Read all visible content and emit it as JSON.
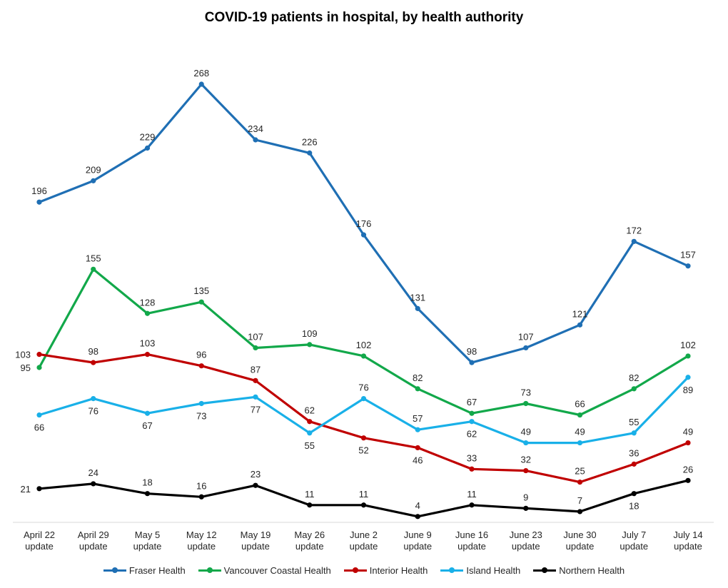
{
  "chart_data": {
    "type": "line",
    "title": "COVID-19 patients in hospital, by health authority",
    "xlabel": "",
    "ylabel": "",
    "categories": [
      [
        "April 22",
        "update"
      ],
      [
        "April 29",
        "update"
      ],
      [
        "May 5",
        "update"
      ],
      [
        "May 12",
        "update"
      ],
      [
        "May 19",
        "update"
      ],
      [
        "May 26",
        "update"
      ],
      [
        "June 2",
        "update"
      ],
      [
        "June 9",
        "update"
      ],
      [
        "June 16",
        "update"
      ],
      [
        "June 23",
        "update"
      ],
      [
        "June 30",
        "update"
      ],
      [
        "July 7",
        "update"
      ],
      [
        "July 14",
        "update"
      ]
    ],
    "ylim": [
      0,
      280
    ],
    "grid": false,
    "legend_position": "bottom",
    "series": [
      {
        "name": "Fraser Health",
        "color": "#1f6fb4",
        "values": [
          196,
          209,
          229,
          268,
          234,
          226,
          176,
          131,
          98,
          107,
          121,
          172,
          157
        ],
        "label_pos": [
          "above",
          "above",
          "above",
          "above",
          "above",
          "above",
          "above",
          "above",
          "above",
          "above",
          "above",
          "above",
          "above"
        ]
      },
      {
        "name": "Vancouver Coastal Health",
        "color": "#12a84a",
        "values": [
          95,
          155,
          128,
          135,
          107,
          109,
          102,
          82,
          67,
          73,
          66,
          82,
          102
        ],
        "label_pos": [
          "left",
          "above",
          "above",
          "above",
          "above",
          "above",
          "above",
          "above",
          "above",
          "above",
          "above",
          "above",
          "above"
        ]
      },
      {
        "name": "Interior Health",
        "color": "#c00000",
        "values": [
          103,
          98,
          103,
          96,
          87,
          62,
          52,
          46,
          33,
          32,
          25,
          36,
          49
        ],
        "label_pos": [
          "left",
          "above",
          "above",
          "above",
          "above",
          "above",
          "below",
          "below",
          "above",
          "above",
          "above",
          "above",
          "above"
        ]
      },
      {
        "name": "Island Health",
        "color": "#19b0e8",
        "values": [
          66,
          76,
          67,
          73,
          77,
          55,
          76,
          57,
          62,
          49,
          49,
          55,
          89
        ],
        "label_pos": [
          "below",
          "below",
          "below",
          "below",
          "below",
          "below",
          "above",
          "above",
          "below",
          "above",
          "above",
          "above",
          "below"
        ]
      },
      {
        "name": "Northern Health",
        "color": "#000000",
        "values": [
          21,
          24,
          18,
          16,
          23,
          11,
          11,
          4,
          11,
          9,
          7,
          18,
          26
        ],
        "label_pos": [
          "left",
          "above",
          "above",
          "above",
          "above",
          "above",
          "above",
          "above",
          "above",
          "above",
          "above",
          "below",
          "above"
        ]
      }
    ]
  }
}
